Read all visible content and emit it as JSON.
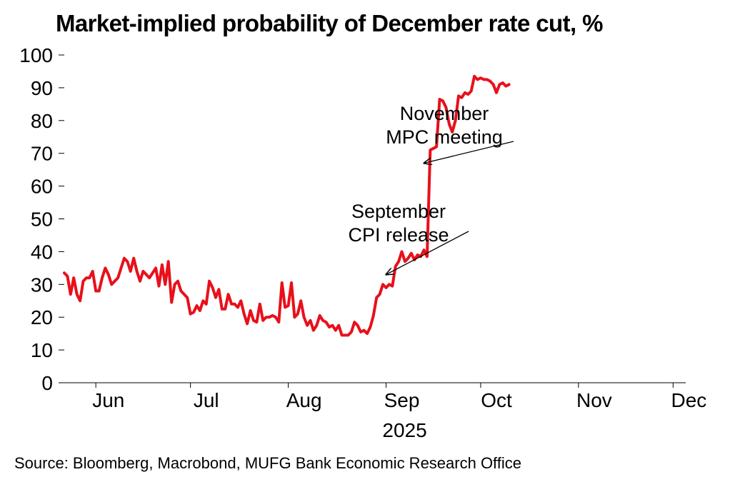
{
  "title": "Market-implied probability of December rate cut, %",
  "source": "Source: Bloomberg, Macrobond, MUFG Bank Economic Research Office",
  "colors": {
    "series": "#e8101b",
    "axis": "#000000"
  },
  "chart_data": {
    "type": "line",
    "title": "Market-implied probability of December rate cut, %",
    "ylim": [
      0,
      100
    ],
    "yticks": [
      0,
      10,
      20,
      30,
      40,
      50,
      60,
      70,
      80,
      90,
      100
    ],
    "x_range": [
      "2025-05-22",
      "2025-12-05"
    ],
    "x_tick_labels": [
      "Jun",
      "Jul",
      "Aug",
      "Sep",
      "Oct",
      "Nov",
      "Dec"
    ],
    "x_tick_label_dates": [
      "2025-06-05",
      "2025-07-06",
      "2025-08-06",
      "2025-09-06",
      "2025-10-06",
      "2025-11-06",
      "2025-12-06"
    ],
    "x_year_label": "2025",
    "grid": false,
    "legend": "none",
    "series": [
      {
        "points": [
          [
            "2025-05-22",
            33.5
          ],
          [
            "2025-05-23",
            32.5
          ],
          [
            "2025-05-24",
            27
          ],
          [
            "2025-05-25",
            32
          ],
          [
            "2025-05-26",
            27
          ],
          [
            "2025-05-27",
            25
          ],
          [
            "2025-05-28",
            31
          ],
          [
            "2025-05-29",
            32
          ],
          [
            "2025-05-30",
            32
          ],
          [
            "2025-05-31",
            34
          ],
          [
            "2025-06-01",
            28
          ],
          [
            "2025-06-02",
            28
          ],
          [
            "2025-06-03",
            32
          ],
          [
            "2025-06-04",
            35
          ],
          [
            "2025-06-05",
            33
          ],
          [
            "2025-06-06",
            30
          ],
          [
            "2025-06-07",
            31
          ],
          [
            "2025-06-08",
            32
          ],
          [
            "2025-06-09",
            35
          ],
          [
            "2025-06-10",
            38
          ],
          [
            "2025-06-11",
            37
          ],
          [
            "2025-06-12",
            34
          ],
          [
            "2025-06-13",
            38
          ],
          [
            "2025-06-14",
            34
          ],
          [
            "2025-06-15",
            31
          ],
          [
            "2025-06-16",
            34
          ],
          [
            "2025-06-17",
            33
          ],
          [
            "2025-06-18",
            32
          ],
          [
            "2025-06-19",
            33.5
          ],
          [
            "2025-06-20",
            35
          ],
          [
            "2025-06-21",
            29.5
          ],
          [
            "2025-06-22",
            36
          ],
          [
            "2025-06-23",
            30
          ],
          [
            "2025-06-24",
            37
          ],
          [
            "2025-06-25",
            24.5
          ],
          [
            "2025-06-26",
            30
          ],
          [
            "2025-06-27",
            31
          ],
          [
            "2025-06-28",
            28
          ],
          [
            "2025-06-29",
            27
          ],
          [
            "2025-06-30",
            26
          ],
          [
            "2025-07-01",
            21
          ],
          [
            "2025-07-02",
            21.5
          ],
          [
            "2025-07-03",
            23.5
          ],
          [
            "2025-07-04",
            22
          ],
          [
            "2025-07-05",
            25
          ],
          [
            "2025-07-06",
            24
          ],
          [
            "2025-07-07",
            31
          ],
          [
            "2025-07-08",
            29
          ],
          [
            "2025-07-09",
            26
          ],
          [
            "2025-07-10",
            28.5
          ],
          [
            "2025-07-11",
            22.5
          ],
          [
            "2025-07-12",
            22.5
          ],
          [
            "2025-07-13",
            27
          ],
          [
            "2025-07-14",
            24
          ],
          [
            "2025-07-15",
            24
          ],
          [
            "2025-07-16",
            23
          ],
          [
            "2025-07-17",
            25
          ],
          [
            "2025-07-18",
            21
          ],
          [
            "2025-07-19",
            18
          ],
          [
            "2025-07-20",
            22
          ],
          [
            "2025-07-21",
            19
          ],
          [
            "2025-07-22",
            18.5
          ],
          [
            "2025-07-23",
            24
          ],
          [
            "2025-07-24",
            19
          ],
          [
            "2025-07-25",
            20
          ],
          [
            "2025-07-26",
            20
          ],
          [
            "2025-07-27",
            20.5
          ],
          [
            "2025-07-28",
            20
          ],
          [
            "2025-07-29",
            18.5
          ],
          [
            "2025-07-30",
            30.5
          ],
          [
            "2025-07-31",
            23
          ],
          [
            "2025-08-01",
            23.5
          ],
          [
            "2025-08-02",
            30.5
          ],
          [
            "2025-08-03",
            20
          ],
          [
            "2025-08-04",
            21
          ],
          [
            "2025-08-05",
            25
          ],
          [
            "2025-08-06",
            20
          ],
          [
            "2025-08-07",
            17.5
          ],
          [
            "2025-08-08",
            19
          ],
          [
            "2025-08-09",
            16
          ],
          [
            "2025-08-10",
            17.5
          ],
          [
            "2025-08-11",
            20.5
          ],
          [
            "2025-08-12",
            19
          ],
          [
            "2025-08-13",
            18.5
          ],
          [
            "2025-08-14",
            17
          ],
          [
            "2025-08-15",
            17.5
          ],
          [
            "2025-08-16",
            16
          ],
          [
            "2025-08-17",
            17.5
          ],
          [
            "2025-08-18",
            14.5
          ],
          [
            "2025-08-19",
            14.5
          ],
          [
            "2025-08-20",
            14.5
          ],
          [
            "2025-08-21",
            15.5
          ],
          [
            "2025-08-22",
            18.5
          ],
          [
            "2025-08-23",
            17.5
          ],
          [
            "2025-08-24",
            15.5
          ],
          [
            "2025-08-25",
            16
          ],
          [
            "2025-08-26",
            15
          ],
          [
            "2025-08-27",
            17
          ],
          [
            "2025-08-28",
            20.5
          ],
          [
            "2025-08-29",
            26
          ],
          [
            "2025-08-30",
            27
          ],
          [
            "2025-08-31",
            30
          ],
          [
            "2025-09-01",
            29
          ],
          [
            "2025-09-02",
            30
          ],
          [
            "2025-09-03",
            29.5
          ],
          [
            "2025-09-04",
            35.5
          ],
          [
            "2025-09-05",
            37
          ],
          [
            "2025-09-06",
            40
          ],
          [
            "2025-09-07",
            37
          ],
          [
            "2025-09-08",
            38
          ],
          [
            "2025-09-09",
            39.5
          ],
          [
            "2025-09-10",
            37.5
          ],
          [
            "2025-09-11",
            39
          ],
          [
            "2025-09-12",
            38.5
          ],
          [
            "2025-09-13",
            40.5
          ],
          [
            "2025-09-14",
            38.5
          ],
          [
            "2025-09-15",
            71
          ],
          [
            "2025-09-16",
            71.5
          ],
          [
            "2025-09-17",
            72
          ],
          [
            "2025-09-18",
            86.5
          ],
          [
            "2025-09-19",
            86
          ],
          [
            "2025-09-20",
            84
          ],
          [
            "2025-09-21",
            79
          ],
          [
            "2025-09-22",
            76.5
          ],
          [
            "2025-09-23",
            80
          ],
          [
            "2025-09-24",
            87.5
          ],
          [
            "2025-09-25",
            87
          ],
          [
            "2025-09-26",
            88.5
          ],
          [
            "2025-09-27",
            88
          ],
          [
            "2025-09-28",
            89
          ],
          [
            "2025-09-29",
            93.5
          ],
          [
            "2025-09-30",
            92.5
          ],
          [
            "2025-10-01",
            93
          ],
          [
            "2025-10-02",
            92.5
          ],
          [
            "2025-10-03",
            92.5
          ],
          [
            "2025-10-04",
            92
          ],
          [
            "2025-10-05",
            91
          ],
          [
            "2025-10-06",
            88.5
          ],
          [
            "2025-10-07",
            91
          ],
          [
            "2025-10-08",
            91.5
          ],
          [
            "2025-10-09",
            90.5
          ],
          [
            "2025-10-10",
            91
          ]
        ]
      }
    ],
    "annotations": [
      {
        "text": [
          "September",
          "CPI release"
        ],
        "points_to": [
          "2025-09-01",
          33
        ]
      },
      {
        "text": [
          "November",
          "MPC meeting"
        ],
        "points_to": [
          "2025-09-13",
          67
        ]
      }
    ]
  }
}
